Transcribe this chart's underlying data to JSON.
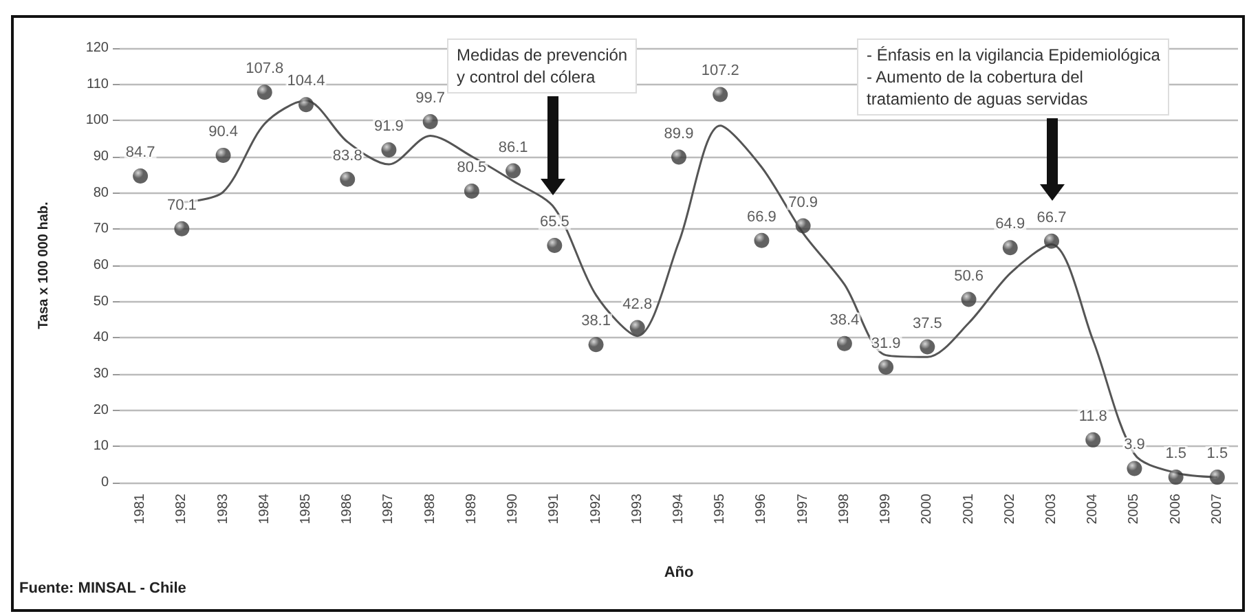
{
  "chart_data": {
    "type": "scatter",
    "xlabel": "Año",
    "ylabel": "Tasa x 100 000 hab.",
    "categories": [
      "1981",
      "1982",
      "1983",
      "1984",
      "1985",
      "1986",
      "1987",
      "1988",
      "1989",
      "1990",
      "1991",
      "1992",
      "1993",
      "1994",
      "1995",
      "1996",
      "1997",
      "1998",
      "1999",
      "2000",
      "2001",
      "2002",
      "2003",
      "2004",
      "2005",
      "2006",
      "2007"
    ],
    "series": [
      {
        "marker": "circle",
        "color": "#3a3a3a",
        "values": [
          84.7,
          70.1,
          90.4,
          107.8,
          104.4,
          83.8,
          91.9,
          99.7,
          80.5,
          86.1,
          65.5,
          38.1,
          42.8,
          89.9,
          107.2,
          66.9,
          70.9,
          38.4,
          31.9,
          37.5,
          50.6,
          64.9,
          66.7,
          11.8,
          3.9,
          1.5,
          1.5
        ],
        "value_labels": [
          "84.7",
          "70.1",
          "90.4",
          "107.8",
          "104.4",
          "83.8",
          "91.9",
          "99.7",
          "80.5",
          "86.1",
          "65.5",
          "38.1",
          "42.8",
          "89.9",
          "107.2",
          "66.9",
          "70.9",
          "38.4",
          "31.9",
          "37.5",
          "50.6",
          "64.9",
          "66.7",
          "11.8",
          "3.9",
          "1.5",
          "1.5"
        ]
      },
      {
        "type": "line",
        "marker": "none",
        "color": "#555555",
        "values": [
          null,
          77.4,
          80.3,
          99.1,
          105.5,
          94.1,
          87.9,
          95.8,
          90.1,
          83.3,
          75.8,
          51.8,
          40.5,
          66.4,
          98.6,
          87.1,
          68.9,
          54.7,
          35.2,
          34.7,
          44.1,
          57.8,
          65.8,
          39.3,
          7.9,
          2.7,
          1.5
        ]
      }
    ],
    "ylim": [
      0,
      120
    ],
    "yticks": [
      0,
      10,
      20,
      30,
      40,
      50,
      60,
      70,
      80,
      90,
      100,
      110,
      120
    ],
    "grid": "y",
    "line_style": "solid",
    "annotations": [
      "Medidas de prevención\ny control del cólera",
      "- Énfasis en la vigilancia Epidemiológica\n- Aumento de la cobertura del\ntratamiento de aguas servidas",
      "Fuente: MINSAL - Chile"
    ]
  }
}
